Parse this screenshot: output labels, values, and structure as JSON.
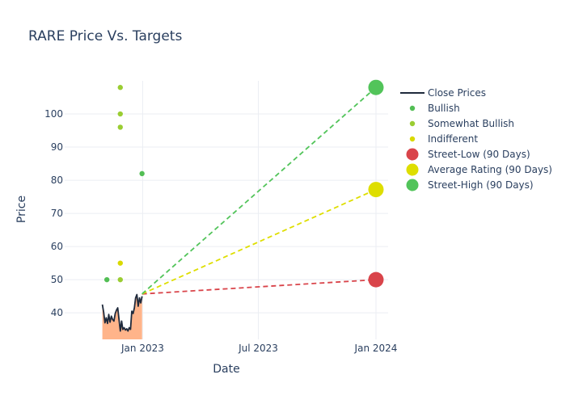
{
  "chart_data": {
    "type": "line",
    "title": "RARE Price Vs. Targets",
    "xlabel": "Date",
    "ylabel": "Price",
    "x_range": [
      "2022-09-01",
      "2024-01-20"
    ],
    "y_range": [
      32,
      110
    ],
    "x_ticks": [
      {
        "date": "2023-01-01",
        "label": "Jan 2023"
      },
      {
        "date": "2023-07-01",
        "label": "Jul 2023"
      },
      {
        "date": "2024-01-01",
        "label": "Jan 2024"
      }
    ],
    "y_ticks": [
      40,
      50,
      60,
      70,
      80,
      90,
      100
    ],
    "grid": true,
    "legend_position": "right",
    "close_prices": {
      "name": "Close Prices",
      "color": "#1f2a3c",
      "fill_color": "#ffb48a",
      "points": [
        [
          "2022-10-30",
          42.5
        ],
        [
          "2022-11-01",
          40.2
        ],
        [
          "2022-11-03",
          37.0
        ],
        [
          "2022-11-05",
          38.5
        ],
        [
          "2022-11-07",
          36.8
        ],
        [
          "2022-11-09",
          39.5
        ],
        [
          "2022-11-11",
          37.2
        ],
        [
          "2022-11-13",
          39.0
        ],
        [
          "2022-11-15",
          38.0
        ],
        [
          "2022-11-17",
          37.5
        ],
        [
          "2022-11-19",
          39.8
        ],
        [
          "2022-11-21",
          40.8
        ],
        [
          "2022-11-23",
          41.5
        ],
        [
          "2022-11-25",
          38.0
        ],
        [
          "2022-11-27",
          34.5
        ],
        [
          "2022-11-29",
          37.5
        ],
        [
          "2022-12-01",
          35.0
        ],
        [
          "2022-12-03",
          35.5
        ],
        [
          "2022-12-05",
          34.8
        ],
        [
          "2022-12-07",
          35.2
        ],
        [
          "2022-12-09",
          34.5
        ],
        [
          "2022-12-11",
          35.5
        ],
        [
          "2022-12-13",
          35.0
        ],
        [
          "2022-12-15",
          40.5
        ],
        [
          "2022-12-17",
          39.8
        ],
        [
          "2022-12-19",
          41.5
        ],
        [
          "2022-12-21",
          44.5
        ],
        [
          "2022-12-23",
          45.5
        ],
        [
          "2022-12-25",
          42.0
        ],
        [
          "2022-12-27",
          44.5
        ],
        [
          "2022-12-29",
          43.0
        ],
        [
          "2022-12-31",
          45.0
        ]
      ]
    },
    "series": [
      {
        "name": "Bullish",
        "color": "#52be54",
        "marker": "small",
        "points": [
          [
            "2022-11-06",
            50
          ],
          [
            "2022-12-31",
            82
          ]
        ]
      },
      {
        "name": "Somewhat Bullish",
        "color": "#9acd32",
        "marker": "small",
        "points": [
          [
            "2022-11-27",
            108
          ],
          [
            "2022-11-27",
            100
          ],
          [
            "2022-11-27",
            96
          ],
          [
            "2022-11-27",
            50
          ]
        ]
      },
      {
        "name": "Indifferent",
        "color": "#d9d900",
        "marker": "small",
        "points": [
          [
            "2022-11-27",
            55
          ]
        ]
      },
      {
        "name": "Street-Low (90 Days)",
        "color": "#d9444a",
        "marker": "large",
        "points": [
          [
            "2024-01-01",
            50
          ]
        ]
      },
      {
        "name": "Average Rating (90 Days)",
        "color": "#dede00",
        "marker": "large",
        "points": [
          [
            "2024-01-01",
            77.2
          ]
        ]
      },
      {
        "name": "Street-High (90 Days)",
        "color": "#52c45a",
        "marker": "large",
        "points": [
          [
            "2024-01-01",
            108
          ]
        ]
      }
    ],
    "projection_lines": [
      {
        "target": "Street-Low (90 Days)",
        "color": "#d9444a",
        "from": [
          "2022-12-31",
          45.7
        ],
        "to": [
          "2024-01-01",
          50
        ]
      },
      {
        "target": "Average Rating (90 Days)",
        "color": "#dede00",
        "from": [
          "2022-12-31",
          45.7
        ],
        "to": [
          "2024-01-01",
          77.2
        ]
      },
      {
        "target": "Street-High (90 Days)",
        "color": "#52c45a",
        "from": [
          "2022-12-31",
          45.7
        ],
        "to": [
          "2024-01-01",
          108
        ]
      }
    ],
    "legend": [
      {
        "name": "Close Prices",
        "symbol": "line",
        "color": "#1f2a3c"
      },
      {
        "name": "Bullish",
        "symbol": "small-dot",
        "color": "#52be54"
      },
      {
        "name": "Somewhat Bullish",
        "symbol": "small-dot",
        "color": "#9acd32"
      },
      {
        "name": "Indifferent",
        "symbol": "small-dot",
        "color": "#d9d900"
      },
      {
        "name": "Street-Low (90 Days)",
        "symbol": "large-dot",
        "color": "#d9444a"
      },
      {
        "name": "Average Rating (90 Days)",
        "symbol": "large-dot",
        "color": "#dede00"
      },
      {
        "name": "Street-High (90 Days)",
        "symbol": "large-dot",
        "color": "#52c45a"
      }
    ]
  }
}
